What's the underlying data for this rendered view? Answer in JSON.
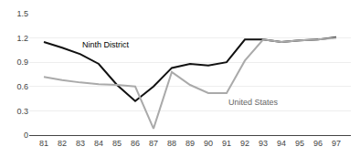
{
  "chart_data": {
    "type": "line",
    "x": [
      81,
      82,
      83,
      84,
      85,
      86,
      87,
      88,
      89,
      90,
      91,
      92,
      93,
      94,
      95,
      96,
      97
    ],
    "series": [
      {
        "name": "Ninth District",
        "color": "#111111",
        "values": [
          1.15,
          1.08,
          1.0,
          0.88,
          0.62,
          0.42,
          0.6,
          0.83,
          0.88,
          0.86,
          0.9,
          1.18,
          1.18,
          1.15,
          1.17,
          1.18,
          1.21
        ]
      },
      {
        "name": "United States",
        "color": "#aaaaaa",
        "values": [
          0.72,
          0.68,
          0.65,
          0.63,
          0.62,
          0.6,
          0.08,
          0.78,
          0.62,
          0.52,
          0.52,
          0.92,
          1.18,
          1.15,
          1.17,
          1.18,
          1.2
        ]
      }
    ],
    "xlim": [
      80.2,
      97.8
    ],
    "xticks": [
      81,
      82,
      83,
      84,
      85,
      86,
      87,
      88,
      89,
      90,
      91,
      92,
      93,
      94,
      95,
      96,
      97
    ],
    "ylim": [
      0,
      1.5
    ],
    "yticks": [
      0,
      0.3,
      0.6,
      0.9,
      1.2,
      1.5
    ],
    "grid": true
  }
}
